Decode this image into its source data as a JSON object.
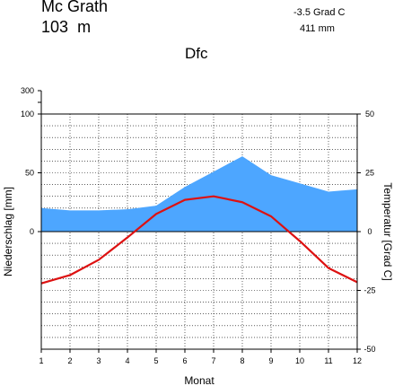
{
  "header": {
    "station": "Mc Grath",
    "elevation_value": "103",
    "elevation_unit": "m",
    "avg_temperature": "-3.5 Grad C",
    "annual_precipitation": "411 mm",
    "climate_class": "Dfc"
  },
  "chart_data": {
    "type": "line",
    "x": [
      1,
      2,
      3,
      4,
      5,
      6,
      7,
      8,
      9,
      10,
      11,
      12
    ],
    "xlabel": "Monat",
    "ylabel_left": "Niederschlag [mm]",
    "ylabel_right": "Temperatur [Grad C]",
    "x_ticks": [
      "1",
      "2",
      "3",
      "4",
      "5",
      "6",
      "7",
      "8",
      "9",
      "10",
      "11",
      "12"
    ],
    "left_ticks": [
      "300",
      "100",
      "50",
      "0"
    ],
    "right_ticks": [
      "50",
      "25",
      "0",
      "-25",
      "-50"
    ],
    "series": [
      {
        "type": "area",
        "axis": "left",
        "color": "#4da6ff",
        "values": [
          20,
          18,
          18,
          19,
          22,
          38,
          51,
          64,
          48,
          41,
          34,
          36
        ]
      },
      {
        "type": "line",
        "axis": "right",
        "color": "#dd1111",
        "values": [
          -22,
          -18.5,
          -12,
          -2.5,
          7.5,
          13.5,
          15,
          12.5,
          6.5,
          -4,
          -15.5,
          -21.5
        ]
      }
    ],
    "precip_range": [
      0,
      100
    ],
    "temp_range": [
      -50,
      50
    ],
    "grid": true
  }
}
